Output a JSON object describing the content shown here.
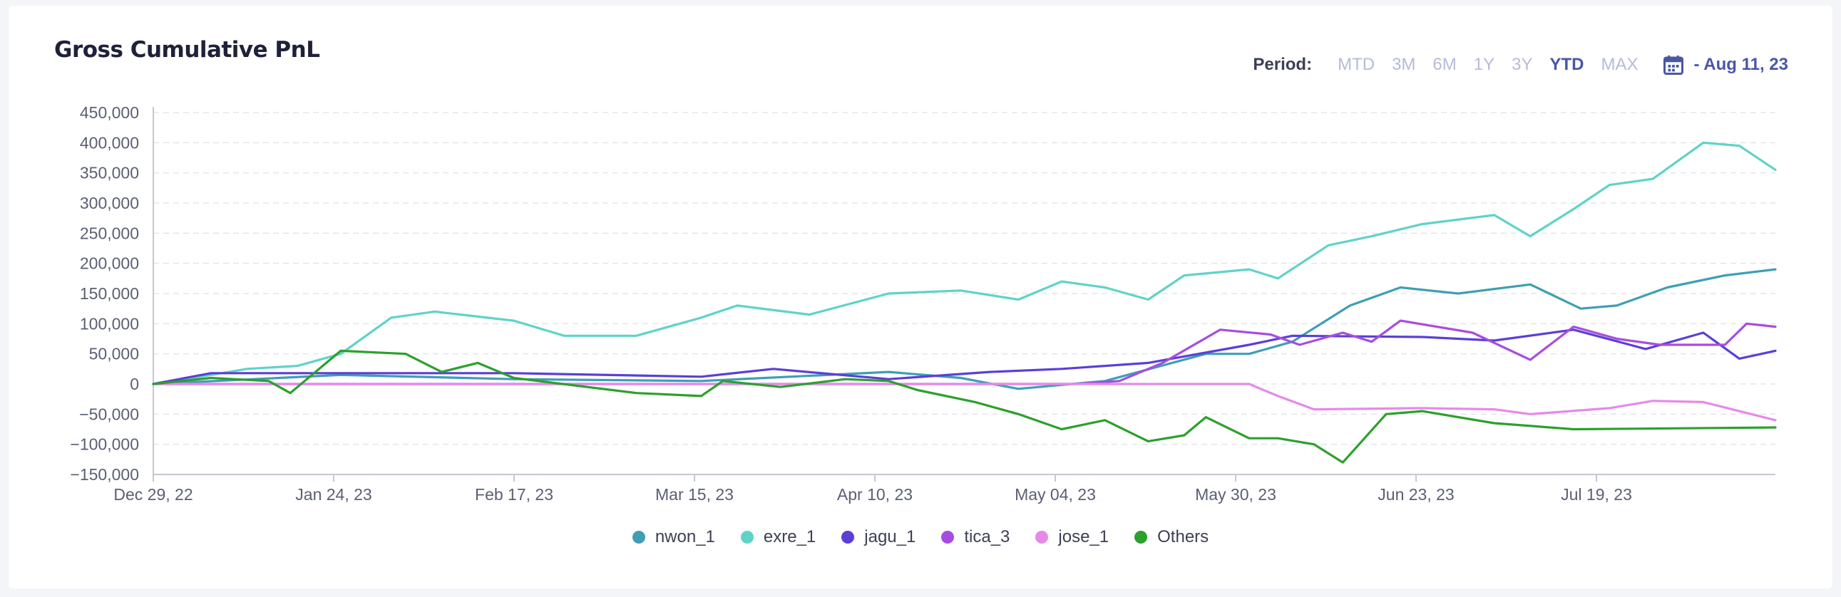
{
  "header": {
    "title": "Gross Cumulative PnL",
    "period_label": "Period:",
    "period_options": [
      "MTD",
      "3M",
      "6M",
      "1Y",
      "3Y",
      "YTD",
      "MAX"
    ],
    "active_period": "YTD",
    "date_label": "- Aug 11, 23",
    "calendar_icon": "calendar-icon"
  },
  "chart_data": {
    "type": "line",
    "title": "Gross Cumulative PnL",
    "xlabel": "",
    "ylabel": "",
    "x_start": "2022-12-29",
    "x_end": "2023-08-11",
    "xticks": [
      "Dec 29, 22",
      "Jan 24, 23",
      "Feb 17, 23",
      "Mar 15, 23",
      "Apr 10, 23",
      "May 04, 23",
      "May 30, 23",
      "Jun 23, 23",
      "Jul 19, 23"
    ],
    "ytick_labels": [
      "450,000",
      "400,000",
      "350,000",
      "300,000",
      "250,000",
      "200,000",
      "150,000",
      "100,000",
      "50,000",
      "0",
      "−50,000",
      "−100,000",
      "−150,000"
    ],
    "ylim": [
      -150000,
      450000
    ],
    "grid": true,
    "legend_position": "bottom",
    "series": [
      {
        "name": "nwon_1",
        "color": "#3e9fb4",
        "points": [
          [
            "2022-12-29",
            0
          ],
          [
            "2023-01-24",
            15000
          ],
          [
            "2023-02-17",
            8000
          ],
          [
            "2023-03-15",
            5000
          ],
          [
            "2023-04-10",
            20000
          ],
          [
            "2023-04-20",
            10000
          ],
          [
            "2023-04-28",
            -8000
          ],
          [
            "2023-05-10",
            5000
          ],
          [
            "2023-05-24",
            50000
          ],
          [
            "2023-05-30",
            50000
          ],
          [
            "2023-06-05",
            70000
          ],
          [
            "2023-06-13",
            130000
          ],
          [
            "2023-06-20",
            160000
          ],
          [
            "2023-06-28",
            150000
          ],
          [
            "2023-07-08",
            165000
          ],
          [
            "2023-07-15",
            125000
          ],
          [
            "2023-07-20",
            130000
          ],
          [
            "2023-07-27",
            160000
          ],
          [
            "2023-08-04",
            180000
          ],
          [
            "2023-08-11",
            190000
          ]
        ]
      },
      {
        "name": "exre_1",
        "color": "#5fd3c8",
        "points": [
          [
            "2022-12-29",
            0
          ],
          [
            "2023-01-06",
            15000
          ],
          [
            "2023-01-11",
            25000
          ],
          [
            "2023-01-18",
            30000
          ],
          [
            "2023-01-24",
            50000
          ],
          [
            "2023-01-31",
            110000
          ],
          [
            "2023-02-06",
            120000
          ],
          [
            "2023-02-17",
            105000
          ],
          [
            "2023-02-24",
            80000
          ],
          [
            "2023-03-06",
            80000
          ],
          [
            "2023-03-15",
            110000
          ],
          [
            "2023-03-20",
            130000
          ],
          [
            "2023-03-30",
            115000
          ],
          [
            "2023-04-10",
            150000
          ],
          [
            "2023-04-20",
            155000
          ],
          [
            "2023-04-28",
            140000
          ],
          [
            "2023-05-04",
            170000
          ],
          [
            "2023-05-10",
            160000
          ],
          [
            "2023-05-16",
            140000
          ],
          [
            "2023-05-21",
            180000
          ],
          [
            "2023-05-30",
            190000
          ],
          [
            "2023-06-03",
            175000
          ],
          [
            "2023-06-10",
            230000
          ],
          [
            "2023-06-16",
            245000
          ],
          [
            "2023-06-23",
            265000
          ],
          [
            "2023-07-03",
            280000
          ],
          [
            "2023-07-08",
            245000
          ],
          [
            "2023-07-14",
            290000
          ],
          [
            "2023-07-19",
            330000
          ],
          [
            "2023-07-25",
            340000
          ],
          [
            "2023-08-01",
            400000
          ],
          [
            "2023-08-06",
            395000
          ],
          [
            "2023-08-11",
            355000
          ]
        ]
      },
      {
        "name": "jagu_1",
        "color": "#5b3fd6",
        "points": [
          [
            "2022-12-29",
            0
          ],
          [
            "2023-01-06",
            18000
          ],
          [
            "2023-01-24",
            18000
          ],
          [
            "2023-02-17",
            18000
          ],
          [
            "2023-03-15",
            12000
          ],
          [
            "2023-03-25",
            25000
          ],
          [
            "2023-04-10",
            8000
          ],
          [
            "2023-04-24",
            20000
          ],
          [
            "2023-05-04",
            25000
          ],
          [
            "2023-05-16",
            35000
          ],
          [
            "2023-05-30",
            65000
          ],
          [
            "2023-06-05",
            80000
          ],
          [
            "2023-06-23",
            78000
          ],
          [
            "2023-07-03",
            72000
          ],
          [
            "2023-07-14",
            90000
          ],
          [
            "2023-07-24",
            58000
          ],
          [
            "2023-08-01",
            85000
          ],
          [
            "2023-08-06",
            42000
          ],
          [
            "2023-08-11",
            55000
          ]
        ]
      },
      {
        "name": "tica_3",
        "color": "#a64de0",
        "points": [
          [
            "2022-12-29",
            0
          ],
          [
            "2023-05-06",
            0
          ],
          [
            "2023-05-12",
            5000
          ],
          [
            "2023-05-18",
            35000
          ],
          [
            "2023-05-26",
            90000
          ],
          [
            "2023-06-02",
            82000
          ],
          [
            "2023-06-06",
            65000
          ],
          [
            "2023-06-12",
            85000
          ],
          [
            "2023-06-16",
            70000
          ],
          [
            "2023-06-20",
            105000
          ],
          [
            "2023-06-30",
            85000
          ],
          [
            "2023-07-08",
            40000
          ],
          [
            "2023-07-14",
            95000
          ],
          [
            "2023-07-20",
            75000
          ],
          [
            "2023-07-26",
            65000
          ],
          [
            "2023-08-04",
            65000
          ],
          [
            "2023-08-07",
            100000
          ],
          [
            "2023-08-11",
            95000
          ]
        ]
      },
      {
        "name": "jose_1",
        "color": "#e58ae8",
        "points": [
          [
            "2022-12-29",
            0
          ],
          [
            "2023-05-30",
            0
          ],
          [
            "2023-06-03",
            -20000
          ],
          [
            "2023-06-08",
            -42000
          ],
          [
            "2023-06-23",
            -40000
          ],
          [
            "2023-07-03",
            -42000
          ],
          [
            "2023-07-08",
            -50000
          ],
          [
            "2023-07-19",
            -40000
          ],
          [
            "2023-07-25",
            -28000
          ],
          [
            "2023-08-01",
            -30000
          ],
          [
            "2023-08-11",
            -60000
          ]
        ]
      },
      {
        "name": "Others",
        "color": "#2ca02c",
        "points": [
          [
            "2022-12-29",
            0
          ],
          [
            "2023-01-06",
            10000
          ],
          [
            "2023-01-14",
            5000
          ],
          [
            "2023-01-17",
            -15000
          ],
          [
            "2023-01-24",
            55000
          ],
          [
            "2023-02-02",
            50000
          ],
          [
            "2023-02-07",
            20000
          ],
          [
            "2023-02-12",
            35000
          ],
          [
            "2023-02-17",
            10000
          ],
          [
            "2023-03-06",
            -15000
          ],
          [
            "2023-03-15",
            -20000
          ],
          [
            "2023-03-18",
            5000
          ],
          [
            "2023-03-26",
            -5000
          ],
          [
            "2023-04-04",
            8000
          ],
          [
            "2023-04-10",
            5000
          ],
          [
            "2023-04-14",
            -10000
          ],
          [
            "2023-04-22",
            -30000
          ],
          [
            "2023-04-28",
            -50000
          ],
          [
            "2023-05-04",
            -75000
          ],
          [
            "2023-05-10",
            -60000
          ],
          [
            "2023-05-16",
            -95000
          ],
          [
            "2023-05-21",
            -85000
          ],
          [
            "2023-05-24",
            -55000
          ],
          [
            "2023-05-30",
            -90000
          ],
          [
            "2023-06-03",
            -90000
          ],
          [
            "2023-06-08",
            -100000
          ],
          [
            "2023-06-12",
            -130000
          ],
          [
            "2023-06-15",
            -90000
          ],
          [
            "2023-06-18",
            -50000
          ],
          [
            "2023-06-23",
            -45000
          ],
          [
            "2023-07-03",
            -65000
          ],
          [
            "2023-07-14",
            -75000
          ],
          [
            "2023-08-11",
            -72000
          ]
        ]
      }
    ]
  }
}
